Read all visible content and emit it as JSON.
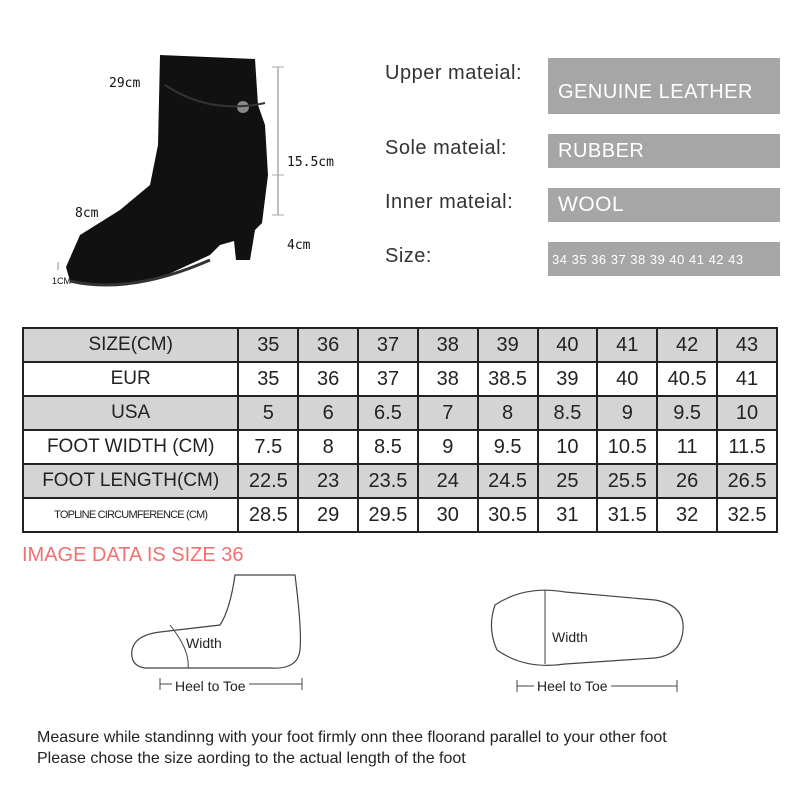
{
  "boot": {
    "dimensions": {
      "circumference": "29cm",
      "shaft_height": "15.5cm",
      "toe": "8cm",
      "heel": "4cm",
      "platform": "1CM"
    }
  },
  "properties": [
    {
      "label": "Upper mateial:",
      "value": "GENUINE LEATHER"
    },
    {
      "label": "Sole mateial:",
      "value": "RUBBER"
    },
    {
      "label": "Inner mateial:",
      "value": "WOOL"
    },
    {
      "label": "Size:",
      "value": "34 35 36 37 38 39 40 41 42 43"
    }
  ],
  "size_table": {
    "rows": [
      {
        "header": "SIZE(CM)",
        "values": [
          "35",
          "36",
          "37",
          "38",
          "39",
          "40",
          "41",
          "42",
          "43"
        ]
      },
      {
        "header": "EUR",
        "values": [
          "35",
          "36",
          "37",
          "38",
          "38.5",
          "39",
          "40",
          "40.5",
          "41"
        ]
      },
      {
        "header": "USA",
        "values": [
          "5",
          "6",
          "6.5",
          "7",
          "8",
          "8.5",
          "9",
          "9.5",
          "10"
        ]
      },
      {
        "header": "FOOT WIDTH (CM)",
        "values": [
          "7.5",
          "8",
          "8.5",
          "9",
          "9.5",
          "10",
          "10.5",
          "11",
          "11.5"
        ]
      },
      {
        "header": "FOOT LENGTH(CM)",
        "values": [
          "22.5",
          "23",
          "23.5",
          "24",
          "24.5",
          "25",
          "25.5",
          "26",
          "26.5"
        ]
      },
      {
        "header": "TOPLINE CIRCUMFERENCE (CM)",
        "values": [
          "28.5",
          "29",
          "29.5",
          "30",
          "30.5",
          "31",
          "31.5",
          "32",
          "32.5"
        ]
      }
    ]
  },
  "image_note": "IMAGE DATA IS SIZE 36",
  "image_note_color": "#f07070",
  "diagrams": {
    "side": {
      "width_label": "Width",
      "length_label": "Heel to Toe"
    },
    "sole": {
      "width_label": "Width",
      "length_label": "Heel to Toe"
    }
  },
  "instructions": [
    "Measure while standinng with your foot firmly onn thee floorand parallel to your other foot",
    "Please chose the size aording to the actual length of the foot"
  ]
}
